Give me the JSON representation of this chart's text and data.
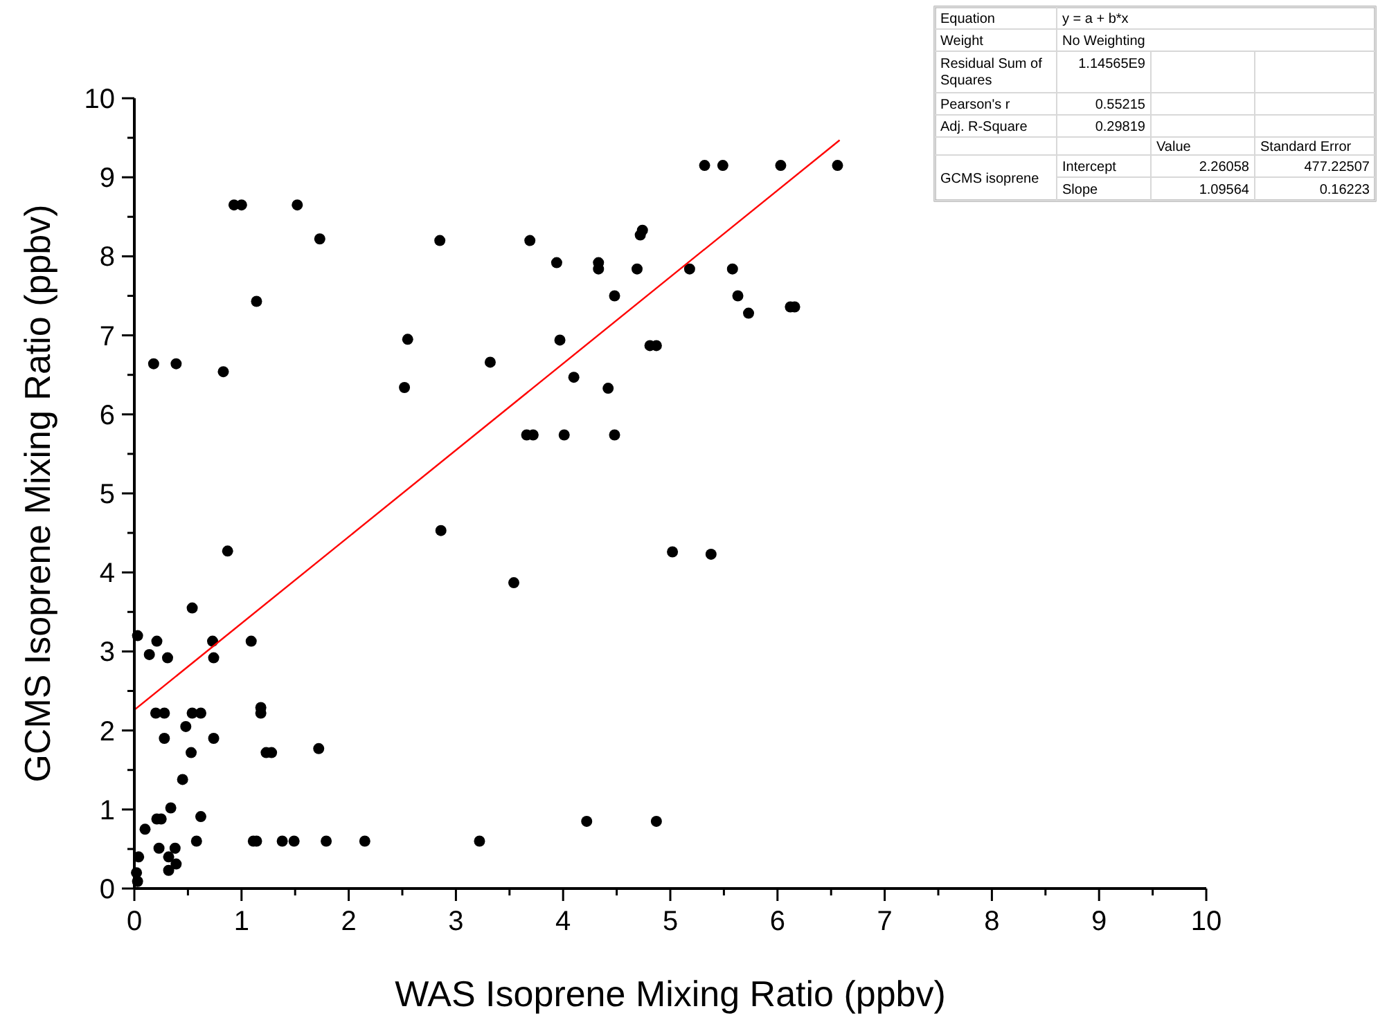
{
  "chart_data": {
    "type": "scatter",
    "xlabel": "WAS Isoprene Mixing Ratio (ppbv)",
    "ylabel": "GCMS Isoprene Mixing Ratio (ppbv)",
    "xlim": [
      0,
      10
    ],
    "ylim": [
      0,
      10
    ],
    "xticks": [
      0,
      {
        "value": 0.5,
        "label": null
      },
      1,
      {
        "value": 1.5,
        "label": null
      },
      2,
      {
        "value": 2.5,
        "label": null
      },
      3,
      {
        "value": 3.5,
        "label": null
      },
      4,
      {
        "value": 4.5,
        "label": null
      },
      5,
      {
        "value": 5.5,
        "label": null
      },
      6,
      {
        "value": 6.5,
        "label": null
      },
      7,
      {
        "value": 7.5,
        "label": null
      },
      8,
      {
        "value": 8.5,
        "label": null
      },
      9,
      {
        "value": 9.5,
        "label": null
      },
      10
    ],
    "yticks": [
      0,
      {
        "value": 0.5,
        "label": null
      },
      1,
      {
        "value": 1.5,
        "label": null
      },
      2,
      {
        "value": 2.5,
        "label": null
      },
      3,
      {
        "value": 3.5,
        "label": null
      },
      4,
      {
        "value": 4.5,
        "label": null
      },
      5,
      {
        "value": 5.5,
        "label": null
      },
      6,
      {
        "value": 6.5,
        "label": null
      },
      7,
      {
        "value": 7.5,
        "label": null
      },
      8,
      {
        "value": 8.5,
        "label": null
      },
      9,
      {
        "value": 9.5,
        "label": null
      },
      10
    ],
    "grid": false,
    "series": [
      {
        "color": "#000000",
        "marker": "circle",
        "x": [
          0.93,
          1.0,
          1.52,
          1.73,
          1.14,
          0.18,
          0.39,
          0.83,
          2.55,
          2.52,
          0.87,
          0.54,
          0.03,
          0.21,
          0.73,
          1.09,
          0.14,
          0.31,
          0.74,
          0.2,
          0.28,
          0.54,
          0.62,
          1.18,
          1.18,
          0.48,
          0.28,
          0.74,
          0.53,
          1.23,
          1.28,
          1.72,
          0.45,
          0.34,
          0.21,
          0.25,
          0.62,
          0.1,
          0.58,
          1.11,
          1.14,
          1.38,
          1.49,
          1.79,
          2.15,
          0.23,
          0.38,
          0.04,
          0.32,
          0.39,
          0.32,
          0.02,
          0.03,
          5.32,
          5.49,
          6.03,
          6.56,
          2.85,
          3.69,
          4.74,
          4.72,
          3.94,
          4.33,
          4.33,
          4.69,
          5.18,
          5.58,
          4.48,
          5.63,
          5.73,
          6.12,
          6.16,
          3.97,
          3.32,
          4.81,
          4.87,
          4.1,
          4.42,
          3.66,
          3.72,
          4.01,
          4.48,
          2.86,
          5.02,
          5.38,
          3.54,
          4.22,
          4.87,
          3.22
        ],
        "values": [
          8.65,
          8.65,
          8.65,
          8.22,
          7.43,
          6.64,
          6.64,
          6.54,
          6.95,
          6.34,
          4.27,
          3.55,
          3.2,
          3.13,
          3.13,
          3.13,
          2.96,
          2.92,
          2.92,
          2.22,
          2.22,
          2.22,
          2.22,
          2.29,
          2.22,
          2.05,
          1.9,
          1.9,
          1.72,
          1.72,
          1.72,
          1.77,
          1.38,
          1.02,
          0.88,
          0.88,
          0.91,
          0.75,
          0.6,
          0.6,
          0.6,
          0.6,
          0.6,
          0.6,
          0.6,
          0.51,
          0.51,
          0.4,
          0.4,
          0.31,
          0.23,
          0.2,
          0.09,
          9.15,
          9.15,
          9.15,
          9.15,
          8.2,
          8.2,
          8.33,
          8.27,
          7.92,
          7.92,
          7.84,
          7.84,
          7.84,
          7.84,
          7.5,
          7.5,
          7.28,
          7.36,
          7.36,
          6.94,
          6.66,
          6.87,
          6.87,
          6.47,
          6.33,
          5.74,
          5.74,
          5.74,
          5.74,
          4.53,
          4.26,
          4.23,
          3.87,
          0.85,
          0.85,
          0.6
        ]
      },
      {
        "type": "line",
        "color": "#ff0000",
        "marker": "none",
        "line_style": "solid",
        "x": [
          0,
          6.58
        ],
        "values": [
          2.26,
          9.47
        ]
      }
    ],
    "annotations": [
      "Equation",
      "y = a + b*x",
      "Weight",
      "No Weighting",
      "Residual Sum of Squares",
      "1.14565E9",
      "Pearson's r",
      "0.55215",
      "Adj. R-Square",
      "0.29819",
      "Value",
      "Standard Error",
      "GCMS isoprene",
      "Intercept",
      "2.26058",
      "477.22507",
      "Slope",
      "1.09564",
      "0.16223"
    ]
  }
}
